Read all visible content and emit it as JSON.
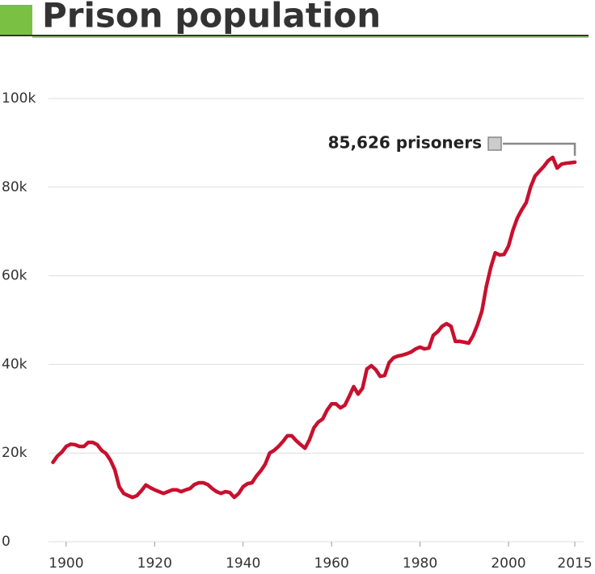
{
  "chart_data": {
    "type": "line",
    "title": "Prison population",
    "annotation": "85,626 prisoners",
    "x": [
      1897,
      1898,
      1899,
      1900,
      1901,
      1902,
      1903,
      1904,
      1905,
      1906,
      1907,
      1908,
      1909,
      1910,
      1911,
      1912,
      1913,
      1914,
      1915,
      1916,
      1917,
      1918,
      1919,
      1920,
      1921,
      1922,
      1923,
      1924,
      1925,
      1926,
      1927,
      1928,
      1929,
      1930,
      1931,
      1932,
      1933,
      1934,
      1935,
      1936,
      1937,
      1938,
      1939,
      1940,
      1941,
      1942,
      1943,
      1944,
      1945,
      1946,
      1947,
      1948,
      1949,
      1950,
      1951,
      1952,
      1953,
      1954,
      1955,
      1956,
      1957,
      1958,
      1959,
      1960,
      1961,
      1962,
      1963,
      1964,
      1965,
      1966,
      1967,
      1968,
      1969,
      1970,
      1971,
      1972,
      1973,
      1974,
      1975,
      1976,
      1977,
      1978,
      1979,
      1980,
      1981,
      1982,
      1983,
      1984,
      1985,
      1986,
      1987,
      1988,
      1989,
      1990,
      1991,
      1992,
      1993,
      1994,
      1995,
      1996,
      1997,
      1998,
      1999,
      2000,
      2001,
      2002,
      2003,
      2004,
      2005,
      2006,
      2007,
      2008,
      2009,
      2010,
      2011,
      2012,
      2013,
      2014,
      2015
    ],
    "series": [
      {
        "name": "Prison population",
        "color": "#c8102e",
        "values": [
          17.9,
          19.3,
          20.2,
          21.5,
          22.0,
          21.9,
          21.5,
          21.5,
          22.4,
          22.4,
          21.9,
          20.6,
          19.9,
          18.4,
          16.2,
          12.4,
          10.9,
          10.4,
          10.0,
          10.4,
          11.5,
          12.8,
          12.2,
          11.7,
          11.3,
          10.9,
          11.3,
          11.7,
          11.7,
          11.3,
          11.7,
          12.0,
          12.9,
          13.3,
          13.3,
          12.9,
          12.0,
          11.3,
          10.9,
          11.3,
          11.1,
          10.0,
          10.9,
          12.4,
          13.1,
          13.3,
          14.8,
          16.0,
          17.5,
          20.0,
          20.6,
          21.5,
          22.6,
          23.9,
          23.9,
          22.8,
          21.9,
          21.1,
          23.0,
          25.7,
          27.0,
          27.7,
          29.7,
          31.1,
          31.1,
          30.2,
          30.8,
          32.8,
          35.0,
          33.3,
          34.6,
          39.0,
          39.7,
          38.8,
          37.3,
          37.5,
          40.4,
          41.5,
          41.9,
          42.1,
          42.4,
          42.8,
          43.5,
          43.9,
          43.5,
          43.7,
          46.6,
          47.4,
          48.6,
          49.2,
          48.6,
          45.2,
          45.2,
          45.0,
          44.8,
          46.5,
          49.0,
          52.1,
          57.6,
          61.9,
          65.2,
          64.7,
          64.8,
          66.7,
          70.3,
          73.0,
          74.9,
          76.5,
          80.0,
          82.5,
          83.6,
          84.7,
          86.0,
          86.7,
          84.3,
          85.2,
          85.4,
          85.5,
          85.626
        ]
      }
    ],
    "xlim": [
      1896,
      2017
    ],
    "xticks": [
      1900,
      1920,
      1940,
      1960,
      1980,
      2000,
      2015
    ],
    "ylim": [
      0,
      100
    ],
    "yticks": [
      0,
      {
        "value": 20,
        "label": "20k"
      },
      {
        "value": 40,
        "label": "40k"
      },
      {
        "value": 60,
        "label": "60k"
      },
      {
        "value": 80,
        "label": "80k"
      },
      {
        "value": 100,
        "label": "100k"
      }
    ],
    "grid": true
  }
}
